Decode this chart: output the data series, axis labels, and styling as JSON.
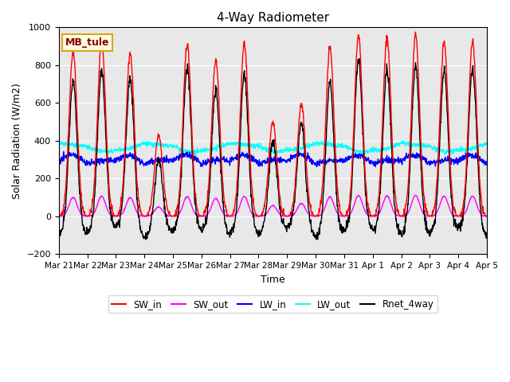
{
  "title": "4-Way Radiometer",
  "xlabel": "Time",
  "ylabel": "Solar Radiation (W/m2)",
  "station_label": "MB_tule",
  "ylim": [
    -200,
    1000
  ],
  "legend_entries": [
    "SW_in",
    "SW_out",
    "LW_in",
    "LW_out",
    "Rnet_4way"
  ],
  "line_colors": [
    "red",
    "magenta",
    "blue",
    "cyan",
    "black"
  ],
  "x_tick_labels": [
    "Mar 21",
    "Mar 22",
    "Mar 23",
    "Mar 24",
    "Mar 25",
    "Mar 26",
    "Mar 27",
    "Mar 28",
    "Mar 29",
    "Mar 30",
    "Mar 31",
    "Apr 1",
    "Apr 2",
    "Apr 3",
    "Apr 4",
    "Apr 5"
  ],
  "background_color": "#e8e8e8",
  "fig_color": "#ffffff",
  "sw_in_peaks": [
    870,
    930,
    860,
    430,
    910,
    830,
    910,
    500,
    590,
    890,
    950,
    940,
    960,
    920,
    920
  ]
}
